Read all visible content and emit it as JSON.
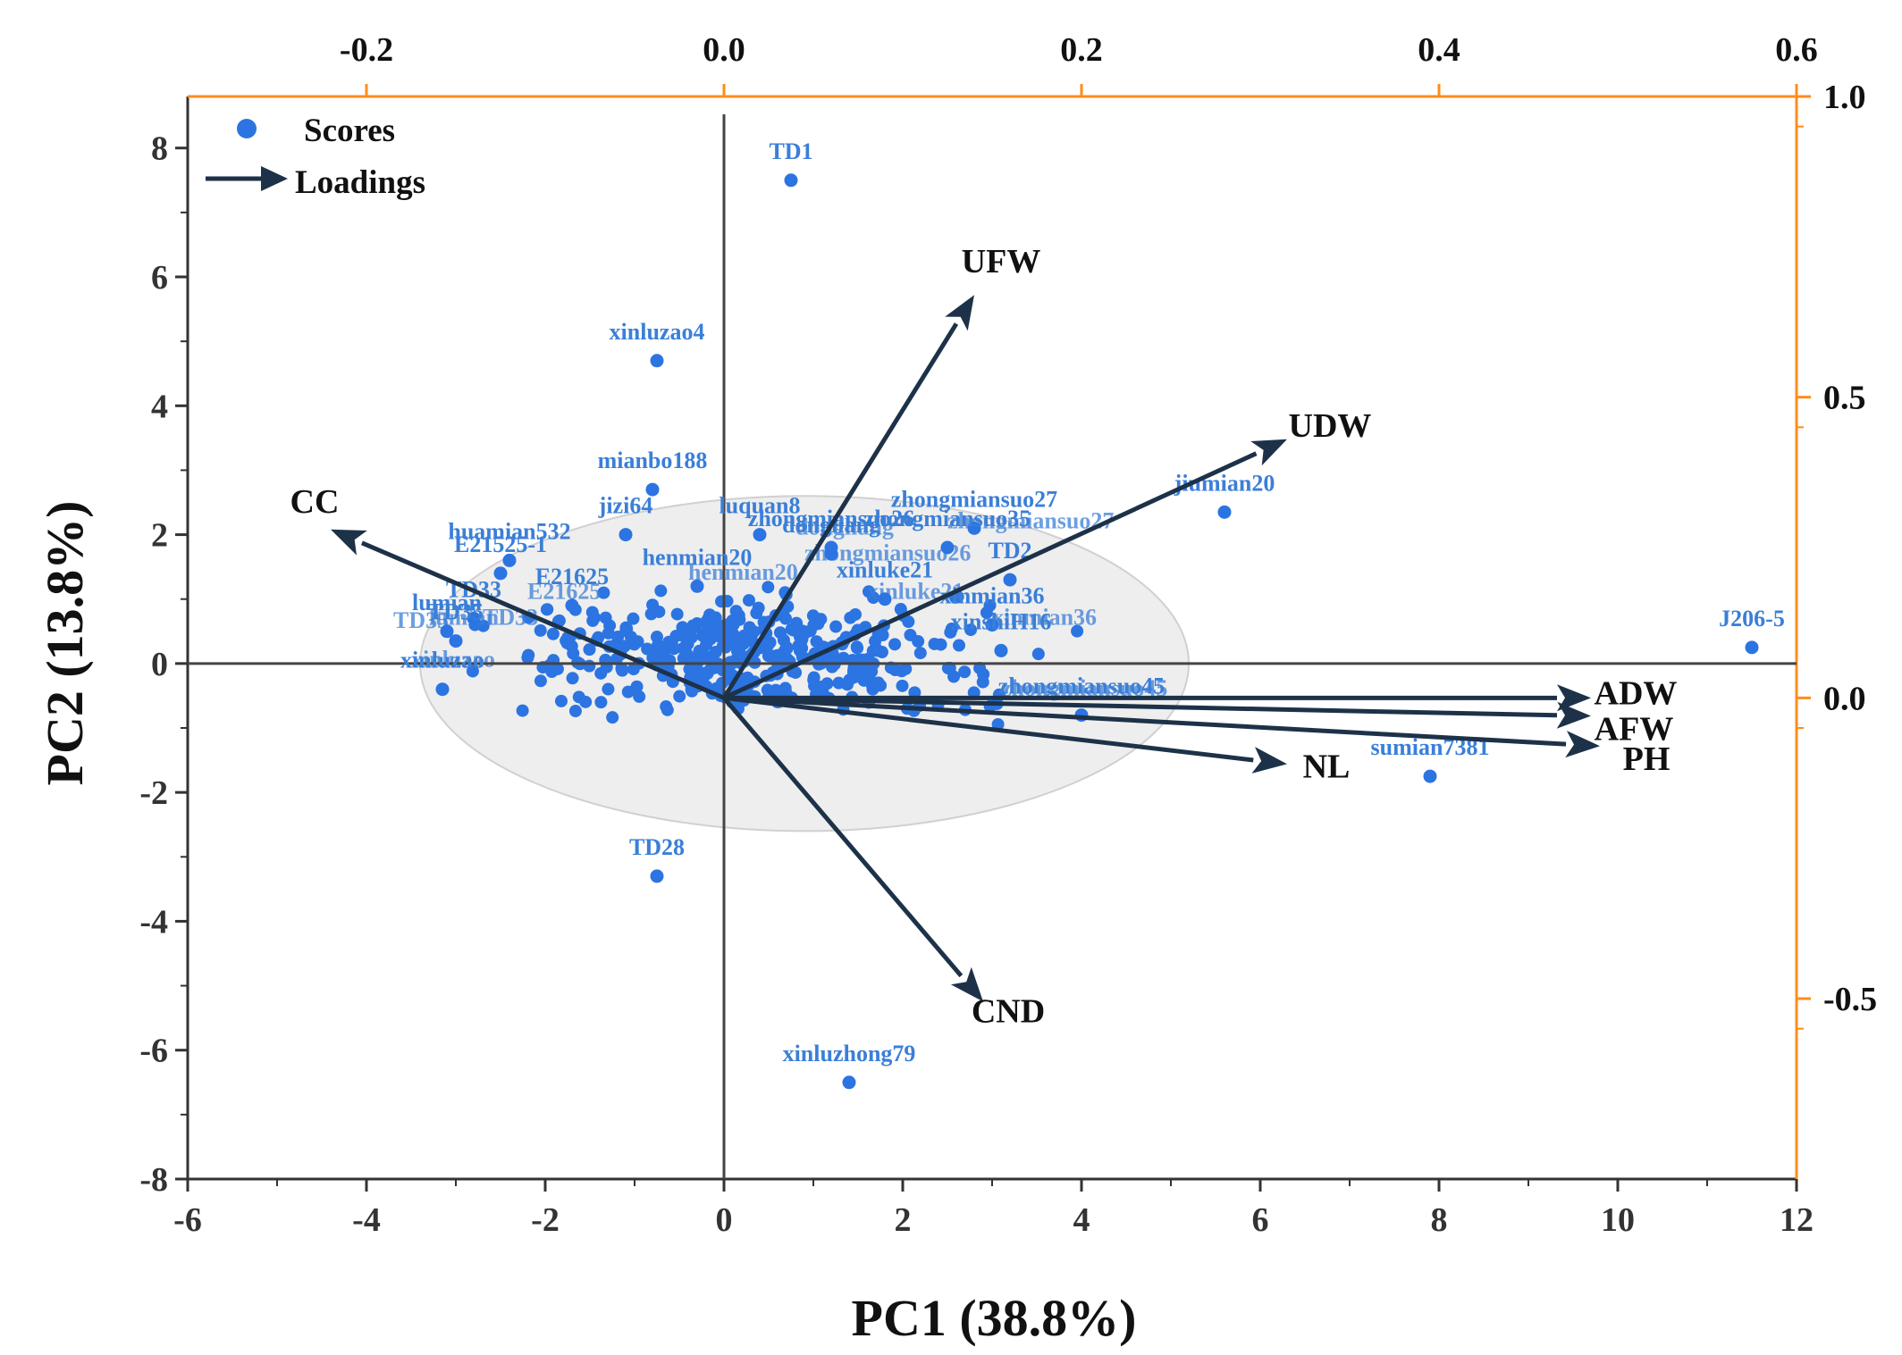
{
  "colors": {
    "scores": "#2b74e2",
    "score_labels": "#3a7fd8",
    "loadings": "#1d3249",
    "secondary_axes": "#ff8c1a",
    "ellipse_fill": "#eeeeee",
    "ellipse_stroke": "#d0d0d0"
  },
  "legend": {
    "scores_label": "Scores",
    "loadings_label": "Loadings",
    "scores_icon": "circle-marker-icon",
    "loadings_icon": "arrow-right-icon"
  },
  "chart_data": {
    "type": "scatter",
    "subtype": "pca-biplot",
    "title": "",
    "xlabel": "PC1 (38.8%)",
    "ylabel": "PC2 (13.8%)",
    "xlim": [
      -6,
      12
    ],
    "ylim": [
      -8,
      8.8
    ],
    "x_ticks": [
      "-6",
      "-4",
      "-2",
      "0",
      "2",
      "4",
      "6",
      "8",
      "10",
      "12"
    ],
    "y_ticks": [
      "-8",
      "-6",
      "-4",
      "-2",
      "0",
      "2",
      "4",
      "6",
      "8"
    ],
    "top_axis": {
      "lim": [
        -0.3,
        0.6
      ],
      "ticks": [
        "-0.2",
        "0.0",
        "0.2",
        "0.4",
        "0.6"
      ]
    },
    "right_axis": {
      "lim": [
        -0.8,
        1.0
      ],
      "ticks": [
        "-0.5",
        "0.0",
        "0.5",
        "1.0"
      ]
    },
    "confidence_ellipse": {
      "center": [
        0.9,
        0.0
      ],
      "rx": 4.3,
      "ry": 2.6
    },
    "labeled_scores": [
      {
        "name": "TD1",
        "x": 0.75,
        "y": 7.5
      },
      {
        "name": "xinluzao4",
        "x": -0.75,
        "y": 4.7
      },
      {
        "name": "mianbo188",
        "x": -0.8,
        "y": 2.7
      },
      {
        "name": "jiumian20",
        "x": 5.6,
        "y": 2.35
      },
      {
        "name": "J206-5",
        "x": 11.5,
        "y": 0.25
      },
      {
        "name": "sumian7381",
        "x": 7.9,
        "y": -1.75
      },
      {
        "name": "TD28",
        "x": -0.75,
        "y": -3.3
      },
      {
        "name": "xinluzhong79",
        "x": 1.4,
        "y": -6.5
      },
      {
        "name": "TD2",
        "x": 3.2,
        "y": 1.3
      },
      {
        "name": "xinshiH16",
        "x": 3.1,
        "y": 0.2
      },
      {
        "name": "jizi64",
        "x": -1.1,
        "y": 2.0
      },
      {
        "name": "luquan8",
        "x": 0.4,
        "y": 2.0
      },
      {
        "name": "huamian532",
        "x": -2.4,
        "y": 1.6
      },
      {
        "name": "E21525-1",
        "x": -2.5,
        "y": 1.4
      },
      {
        "name": "E21625",
        "x": -1.7,
        "y": 0.9
      },
      {
        "name": "zhongmiansuo26",
        "x": 1.2,
        "y": 1.8
      },
      {
        "name": "zhongmiansuo27",
        "x": 2.8,
        "y": 2.1
      },
      {
        "name": "zhongmiansuo35",
        "x": 2.5,
        "y": 1.8
      },
      {
        "name": "dongliang",
        "x": 1.2,
        "y": 1.7
      },
      {
        "name": "henmian20",
        "x": -0.3,
        "y": 1.2
      },
      {
        "name": "xinluke21",
        "x": 1.8,
        "y": 1.0
      },
      {
        "name": "TD33",
        "x": -2.8,
        "y": 0.7
      },
      {
        "name": "TD35",
        "x": -3.0,
        "y": 0.35
      },
      {
        "name": "xinluzao",
        "x": -3.15,
        "y": -0.4
      },
      {
        "name": "lumian",
        "x": -3.1,
        "y": 0.5
      },
      {
        "name": "zhongmiansuo45",
        "x": 4.0,
        "y": -0.8
      },
      {
        "name": "xinmian36",
        "x": 3.0,
        "y": 0.6
      }
    ],
    "loadings": [
      {
        "name": "UFW",
        "x": 0.14,
        "y": 0.67
      },
      {
        "name": "UDW",
        "x": 0.315,
        "y": 0.43
      },
      {
        "name": "CC",
        "x": -0.22,
        "y": 0.28
      },
      {
        "name": "ADW",
        "x": 0.485,
        "y": 0.0
      },
      {
        "name": "AFW",
        "x": 0.485,
        "y": -0.03
      },
      {
        "name": "PH",
        "x": 0.49,
        "y": -0.08
      },
      {
        "name": "NL",
        "x": 0.315,
        "y": -0.11
      },
      {
        "name": "CND",
        "x": 0.145,
        "y": -0.505
      }
    ]
  }
}
